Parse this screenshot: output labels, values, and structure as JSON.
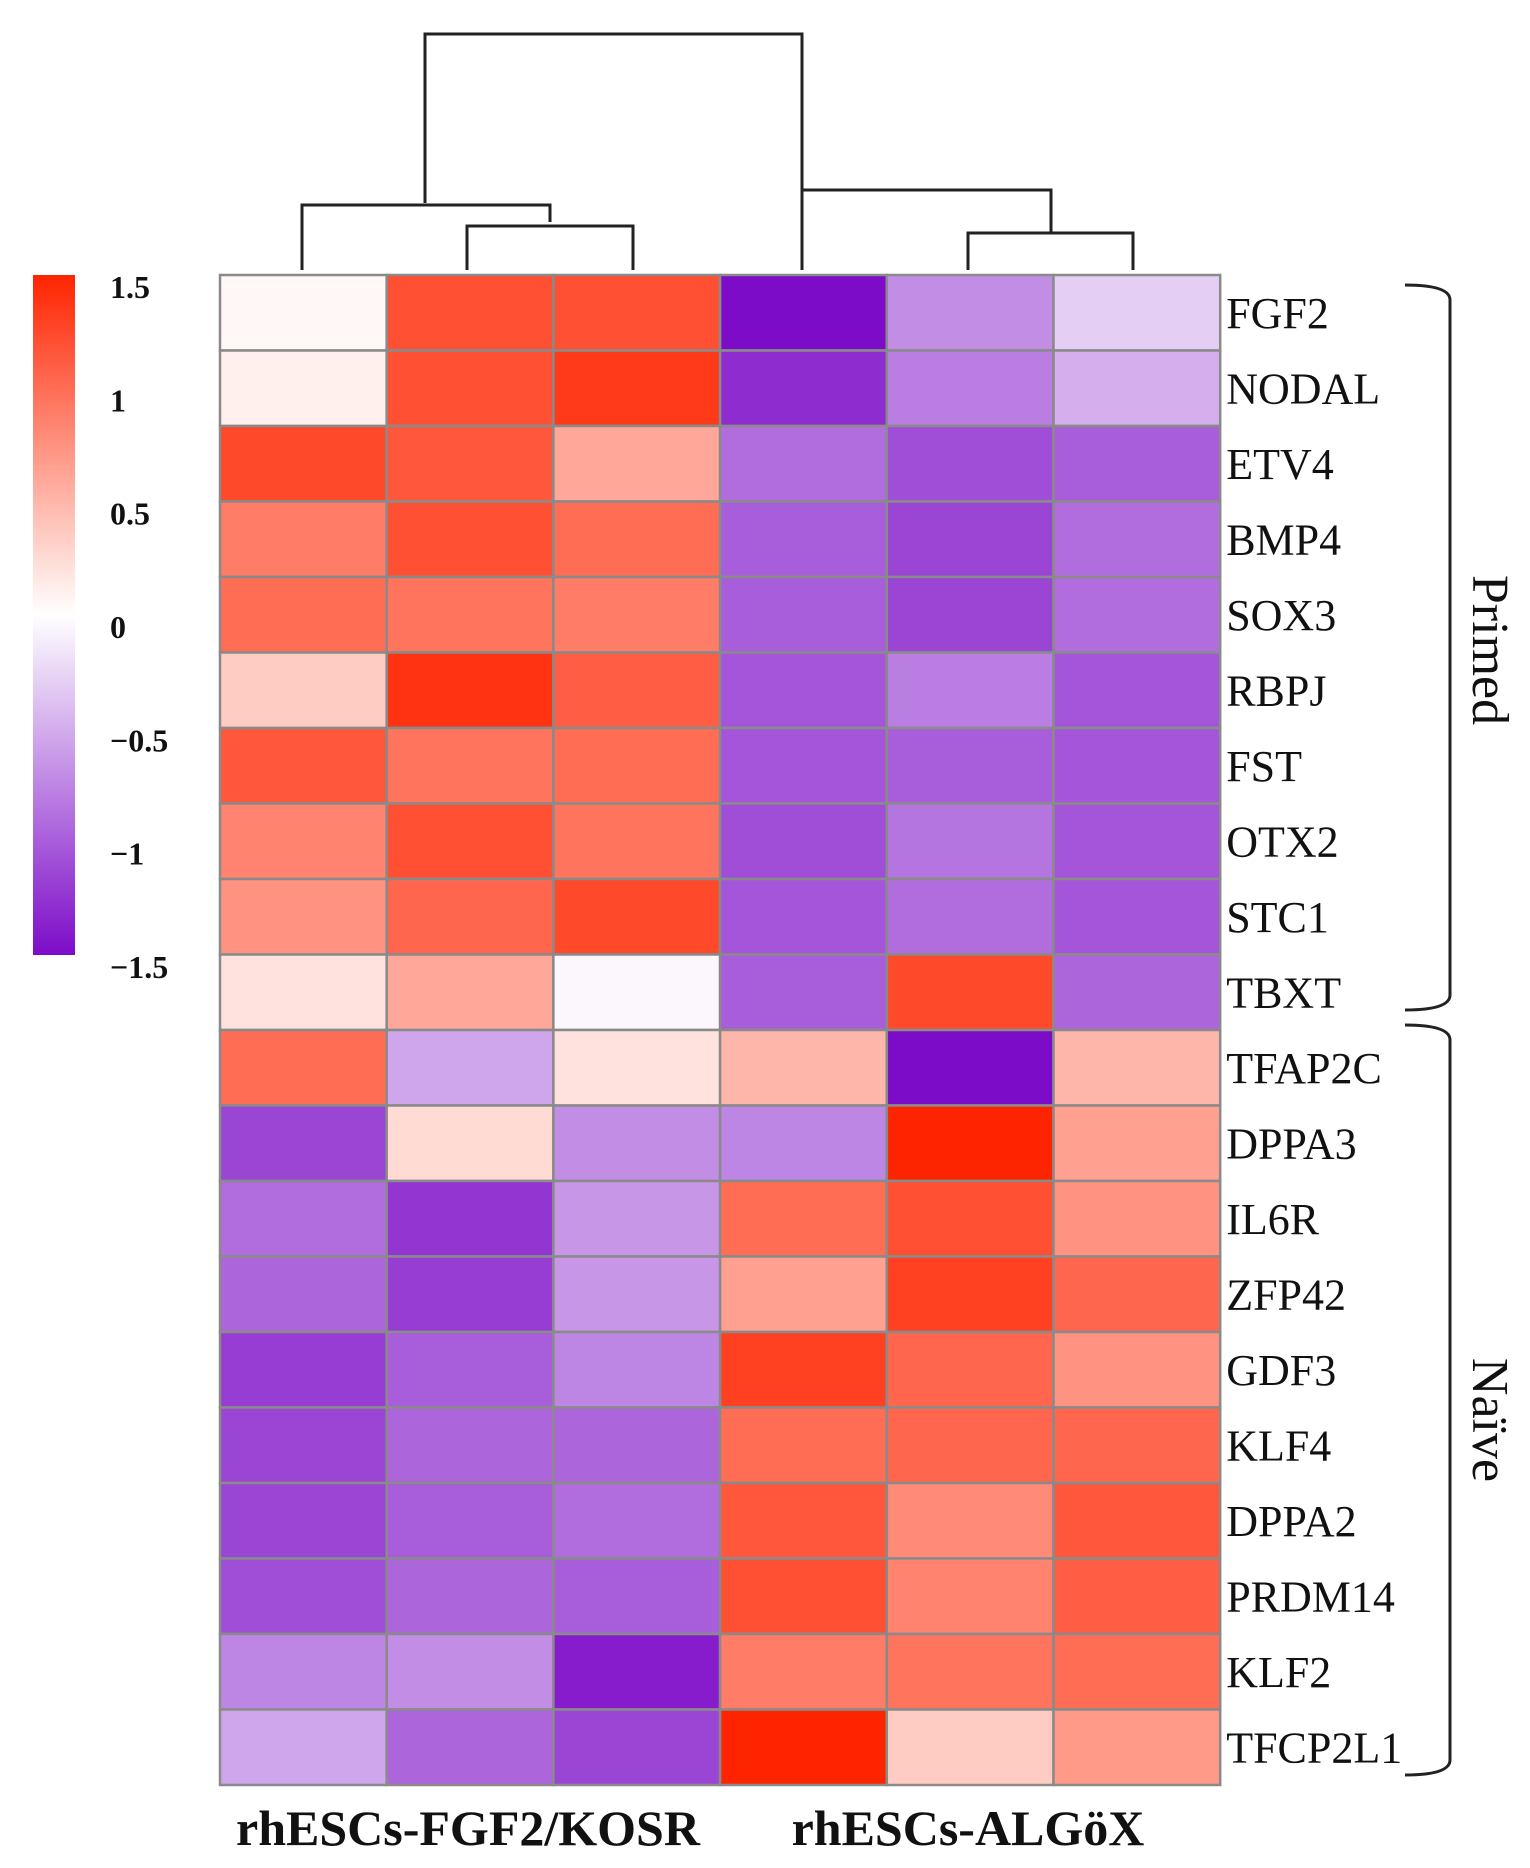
{
  "chart_data": {
    "type": "heatmap",
    "rows": [
      "FGF2",
      "NODAL",
      "ETV4",
      "BMP4",
      "SOX3",
      "RBPJ",
      "FST",
      "OTX2",
      "STC1",
      "TBXT",
      "TFAP2C",
      "DPPA3",
      "IL6R",
      "ZFP42",
      "GDF3",
      "KLF4",
      "DPPA2",
      "PRDM14",
      "KLF2",
      "TFCP2L1"
    ],
    "column_groups": [
      {
        "label": "rhESCs-FGF2/KOSR",
        "columns": 3
      },
      {
        "label": "rhESCs-ALGöX",
        "columns": 3
      }
    ],
    "values": [
      [
        0.05,
        1.2,
        1.2,
        -1.5,
        -0.7,
        -0.3
      ],
      [
        0.1,
        1.2,
        1.35,
        -1.3,
        -0.8,
        -0.5
      ],
      [
        1.25,
        1.15,
        0.6,
        -0.9,
        -1.1,
        -1.0
      ],
      [
        0.9,
        1.2,
        1.0,
        -1.0,
        -1.15,
        -0.9
      ],
      [
        1.0,
        0.95,
        0.9,
        -1.0,
        -1.15,
        -0.9
      ],
      [
        0.35,
        1.4,
        1.1,
        -1.05,
        -0.8,
        -1.05
      ],
      [
        1.15,
        0.95,
        1.0,
        -1.05,
        -1.0,
        -1.05
      ],
      [
        0.85,
        1.2,
        0.95,
        -1.1,
        -0.85,
        -1.05
      ],
      [
        0.75,
        1.05,
        1.25,
        -1.05,
        -0.9,
        -1.05
      ],
      [
        0.2,
        0.6,
        -0.05,
        -1.0,
        1.25,
        -0.95
      ],
      [
        1.0,
        -0.55,
        0.2,
        0.5,
        -1.5,
        0.5
      ],
      [
        -1.15,
        0.25,
        -0.7,
        -0.75,
        1.6,
        0.65
      ],
      [
        -0.9,
        -1.25,
        -0.65,
        1.0,
        1.2,
        0.75
      ],
      [
        -0.95,
        -1.2,
        -0.65,
        0.65,
        1.3,
        1.05
      ],
      [
        -1.2,
        -1.0,
        -0.75,
        1.3,
        1.05,
        0.75
      ],
      [
        -1.15,
        -0.95,
        -0.95,
        1.0,
        1.05,
        1.05
      ],
      [
        -1.15,
        -1.0,
        -0.9,
        1.15,
        0.8,
        1.15
      ],
      [
        -1.1,
        -0.95,
        -1.0,
        1.2,
        0.85,
        1.1
      ],
      [
        -0.75,
        -0.7,
        -1.4,
        0.9,
        0.95,
        1.0
      ],
      [
        -0.55,
        -0.95,
        -1.15,
        1.65,
        0.35,
        0.7
      ]
    ],
    "row_groups": [
      {
        "label": "Primed",
        "from": 0,
        "to": 9
      },
      {
        "label": "Naïve",
        "from": 10,
        "to": 19
      }
    ],
    "color_scale": {
      "min": -1.5,
      "max": 1.5,
      "low_color": "#7d0cc8",
      "mid_color": "#ffffff",
      "high_color": "#ff2400",
      "ticks": [
        1.5,
        1,
        0.5,
        0,
        -0.5,
        -1,
        -1.5
      ],
      "tick_labels": [
        "1.5",
        "1",
        "0.5",
        "0",
        "−0.5",
        "−1",
        "−1.5"
      ]
    }
  }
}
